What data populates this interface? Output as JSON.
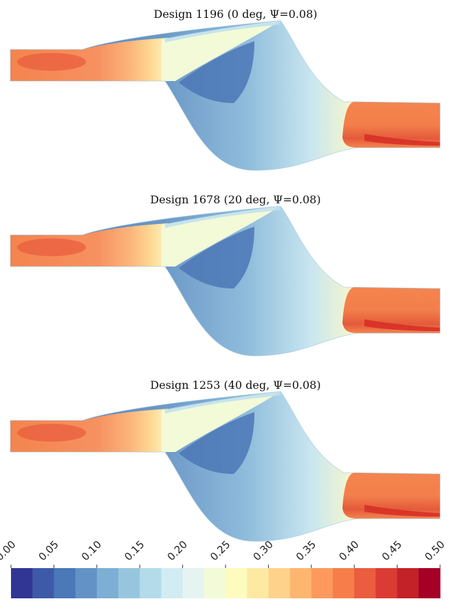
{
  "panels": [
    {
      "title": "Design 1196 (0 deg, Ψ=0.08)"
    },
    {
      "title": "Design 1678 (20 deg, Ψ=0.08)"
    },
    {
      "title": "Design 1253 (40 deg, Ψ=0.08)"
    }
  ],
  "colorbar": {
    "tick_labels": [
      "0.00",
      "0.05",
      "0.10",
      "0.15",
      "0.20",
      "0.25",
      "0.30",
      "0.35",
      "0.40",
      "0.45",
      "0.50"
    ],
    "range": [
      0.0,
      0.5
    ],
    "colors": [
      "#313695",
      "#3d5aa8",
      "#4a78b8",
      "#6393c6",
      "#7daed3",
      "#98c5de",
      "#b4dbea",
      "#d1ecf3",
      "#e6f4f1",
      "#f3fad8",
      "#fefbbf",
      "#fee9a3",
      "#fed28a",
      "#fdb670",
      "#fb9a5c",
      "#f67e4b",
      "#ea5d3f",
      "#da3b33",
      "#c22228",
      "#a50026"
    ]
  },
  "colors": {
    "background": "#ffffff",
    "pipe": "#f4844e",
    "pipe_core": "#ea5d3f",
    "pipe_dark": "#d73027",
    "low_region": "#6f99c9",
    "low_core": "#4b77b6",
    "high_region": "#f3fad8"
  }
}
